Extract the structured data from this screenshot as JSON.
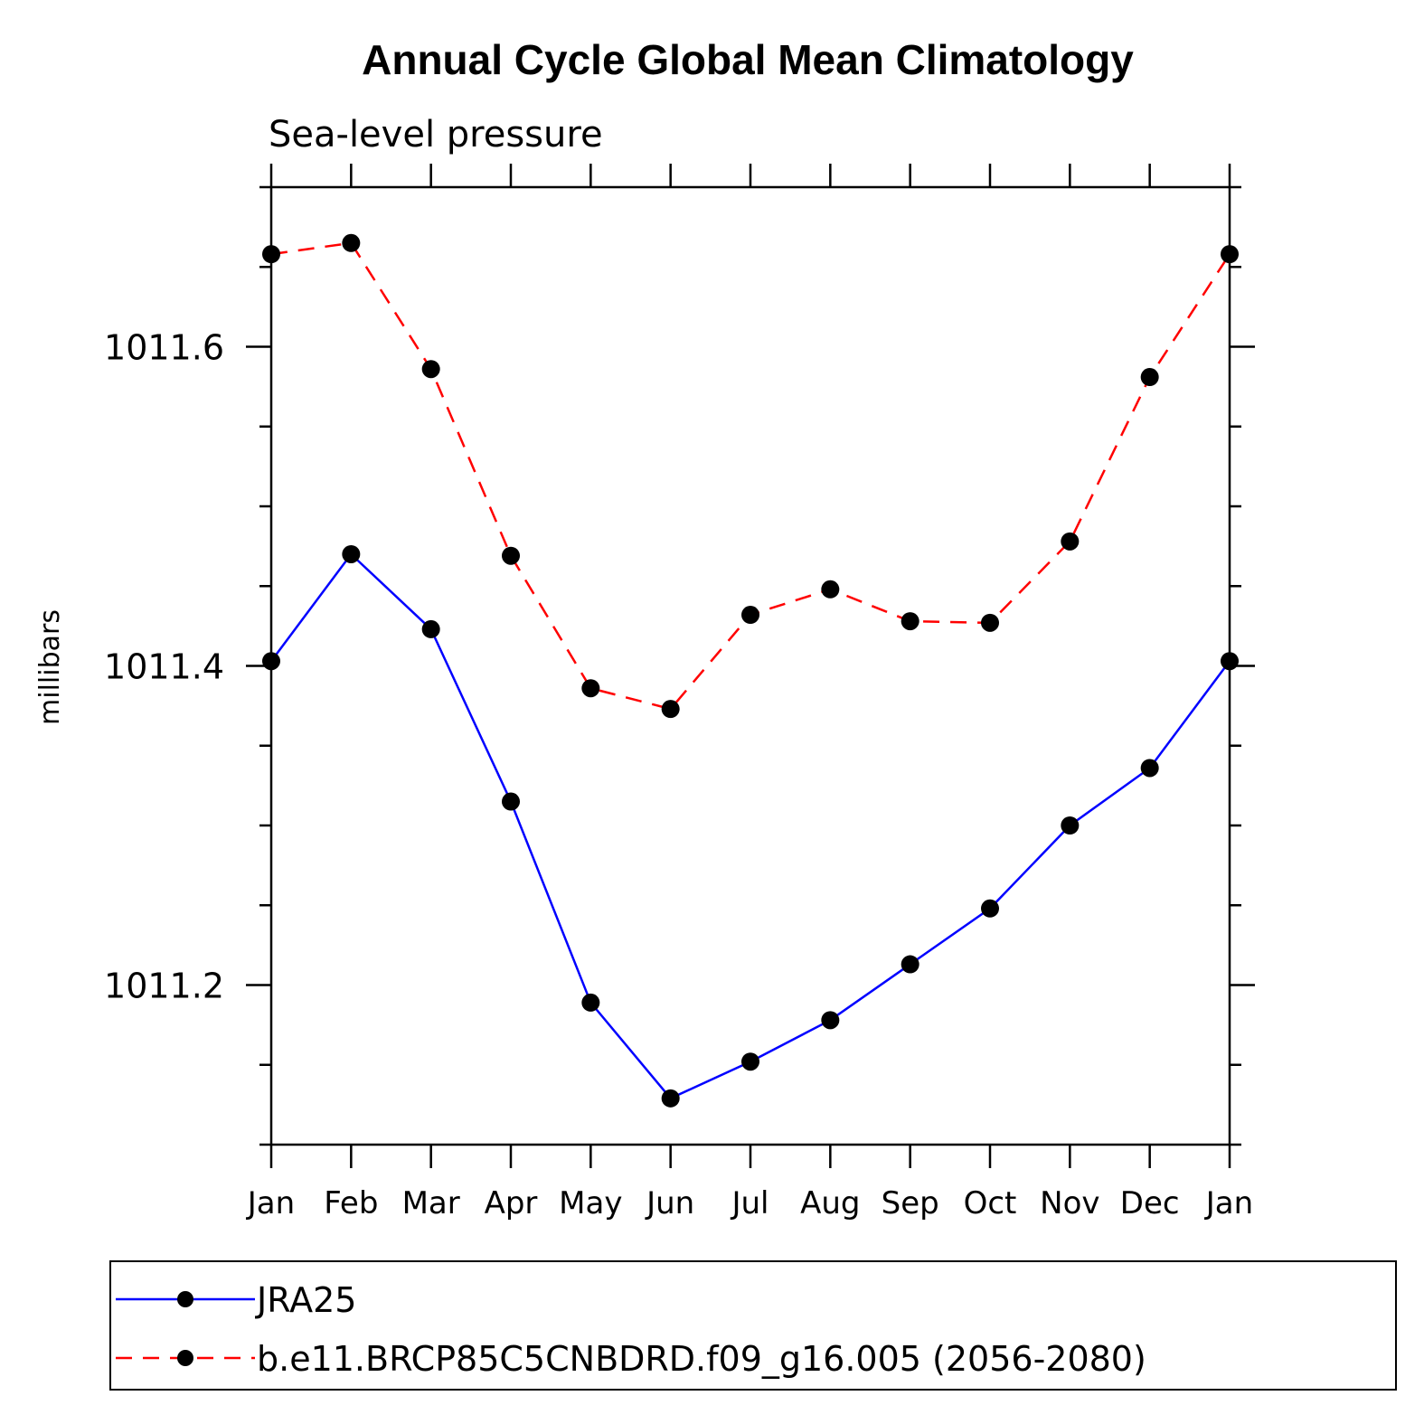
{
  "chart_data": {
    "type": "line",
    "title": "Annual Cycle Global Mean Climatology",
    "subtitle": "Sea-level pressure",
    "xlabel": "",
    "ylabel": "millibars",
    "categories": [
      "Jan",
      "Feb",
      "Mar",
      "Apr",
      "May",
      "Jun",
      "Jul",
      "Aug",
      "Sep",
      "Oct",
      "Nov",
      "Dec",
      "Jan"
    ],
    "yticks": [
      "1011.2",
      "1011.4",
      "1011.6"
    ],
    "ylim": [
      1011.1,
      1011.7
    ],
    "grid": false,
    "legend_position": "bottom",
    "series": [
      {
        "name": "JRA25",
        "color": "#0000ff",
        "line_style": "solid",
        "marker": "filled-circle",
        "values": [
          1011.403,
          1011.47,
          1011.423,
          1011.315,
          1011.189,
          1011.129,
          1011.152,
          1011.178,
          1011.213,
          1011.248,
          1011.3,
          1011.336,
          1011.403
        ]
      },
      {
        "name": "b.e11.BRCP85C5CNBDRD.f09_g16.005 (2056-2080)",
        "color": "#ff0000",
        "line_style": "dashed",
        "marker": "filled-circle",
        "values": [
          1011.658,
          1011.665,
          1011.586,
          1011.469,
          1011.386,
          1011.373,
          1011.432,
          1011.448,
          1011.428,
          1011.427,
          1011.478,
          1011.581,
          1011.658
        ]
      }
    ]
  }
}
